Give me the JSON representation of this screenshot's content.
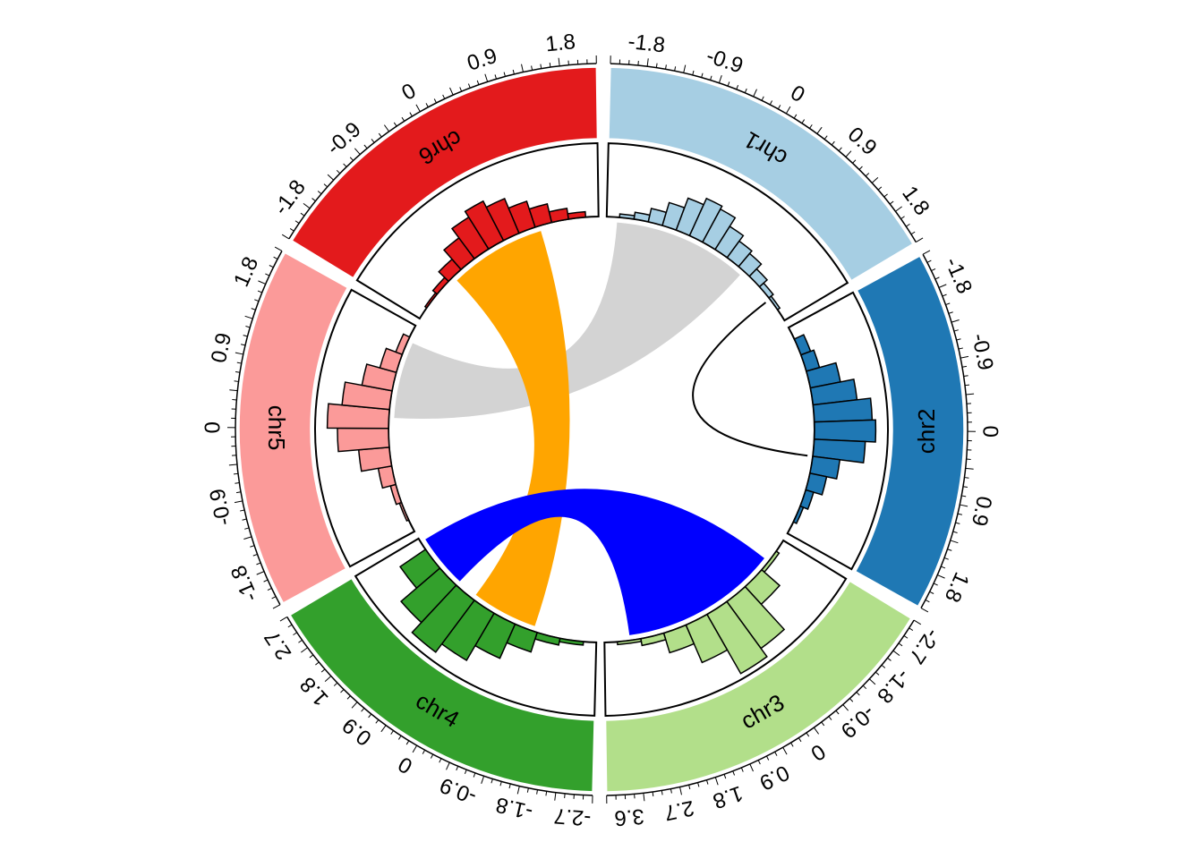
{
  "chart_data": {
    "type": "circos",
    "sectors": [
      {
        "name": "chr1",
        "color": "#A6CEE3",
        "xlim": [
          -2.2,
          2.2
        ],
        "tick_labels": [
          "-1.8",
          "-0.9",
          "0",
          "0.9",
          "1.8"
        ],
        "histogram": [
          0.05,
          0.1,
          0.2,
          0.35,
          0.5,
          0.6,
          0.55,
          0.4,
          0.3,
          0.25,
          0.15,
          0.08,
          0.04
        ]
      },
      {
        "name": "chr2",
        "color": "#1F78B4",
        "xlim": [
          -2.2,
          2.2
        ],
        "tick_labels": [
          "-1.8",
          "-0.9",
          "0",
          "0.9",
          "1.8"
        ],
        "histogram": [
          0.15,
          0.2,
          0.45,
          0.65,
          0.85,
          0.9,
          0.75,
          0.4,
          0.25,
          0.12,
          0.05
        ]
      },
      {
        "name": "chr3",
        "color": "#B2DF8A",
        "xlim": [
          -3.0,
          4.0
        ],
        "tick_labels": [
          "-2.7",
          "-1.8",
          "-0.9",
          "0",
          "0.9",
          "1.8",
          "2.7",
          "3.6"
        ],
        "histogram": [
          0.05,
          0.35,
          0.85,
          1.0,
          0.6,
          0.3,
          0.1,
          0.04
        ]
      },
      {
        "name": "chr4",
        "color": "#33A02C",
        "xlim": [
          -3.0,
          3.0
        ],
        "tick_labels": [
          "-2.7",
          "-1.8",
          "-0.9",
          "0",
          "0.9",
          "1.8",
          "2.7"
        ],
        "histogram": [
          0.05,
          0.1,
          0.3,
          0.55,
          0.8,
          0.95,
          0.75,
          0.45
        ]
      },
      {
        "name": "chr5",
        "color": "#FB9A99",
        "xlim": [
          -2.2,
          2.2
        ],
        "tick_labels": [
          "-1.8",
          "-0.9",
          "0",
          "0.9",
          "1.8"
        ],
        "histogram": [
          0.03,
          0.08,
          0.2,
          0.45,
          0.75,
          0.9,
          0.7,
          0.45,
          0.25,
          0.1
        ]
      },
      {
        "name": "chr6",
        "color": "#E31A1C",
        "xlim": [
          -2.2,
          2.2
        ],
        "tick_labels": [
          "-1.8",
          "-0.9",
          "0",
          "0.9",
          "1.8"
        ],
        "histogram": [
          0.03,
          0.08,
          0.2,
          0.38,
          0.55,
          0.65,
          0.55,
          0.4,
          0.28,
          0.16,
          0.08
        ]
      }
    ],
    "links": [
      {
        "from": {
          "sector": "chr1",
          "range": [
            0.05,
            0.7
          ]
        },
        "to": {
          "sector": "chr5",
          "range": [
            0.55,
            0.92
          ]
        },
        "color": "#D3D3D3"
      },
      {
        "from": {
          "sector": "chr6",
          "range": [
            0.25,
            0.72
          ]
        },
        "to": {
          "sector": "chr4",
          "range": [
            0.3,
            0.62
          ]
        },
        "color": "#FFA500"
      },
      {
        "from": {
          "sector": "chr3",
          "range": [
            0.12,
            0.88
          ]
        },
        "to": {
          "sector": "chr4",
          "range": [
            0.72,
            0.98
          ]
        },
        "color": "#0000FF"
      },
      {
        "from": {
          "sector": "chr2",
          "range": [
            0.62,
            0.62
          ]
        },
        "to": {
          "sector": "chr1",
          "range": [
            0.88,
            0.88
          ]
        },
        "color": "#000000"
      }
    ]
  }
}
